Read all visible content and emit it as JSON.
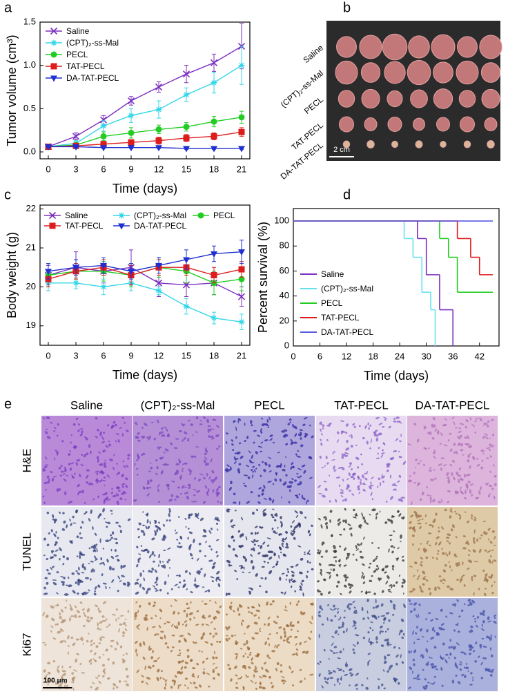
{
  "panel_labels": [
    "a",
    "b",
    "c",
    "d",
    "e"
  ],
  "chart_data": [
    {
      "type": "line",
      "xlabel": "Time (days)",
      "ylabel": "Tumor volume (cm³)",
      "x": [
        0,
        3,
        6,
        9,
        12,
        15,
        18,
        21
      ],
      "xlim": [
        -0.9,
        21.9
      ],
      "xticks": [
        0,
        3,
        6,
        9,
        12,
        15,
        18,
        21
      ],
      "ylim": [
        -0.08,
        1.5
      ],
      "yticks": [
        {
          "value": 0,
          "label": "0.0"
        },
        0.5,
        {
          "value": 1,
          "label": "1.0"
        },
        1.5
      ],
      "legend": "upper left",
      "legend_columns": 1,
      "series": [
        {
          "name": "Saline",
          "color": "#7b2fbe",
          "marker": "x",
          "values": [
            0.06,
            0.18,
            0.37,
            0.59,
            0.75,
            0.9,
            1.03,
            1.22
          ],
          "errors": [
            0.02,
            0.04,
            0.05,
            0.05,
            0.06,
            0.1,
            0.1,
            0.26
          ]
        },
        {
          "name": "(CPT)₂-ss-Mal",
          "color": "#33d6e8",
          "marker": "asterisk",
          "values": [
            0.06,
            0.1,
            0.3,
            0.42,
            0.49,
            0.66,
            0.8,
            1.0
          ],
          "errors": [
            0.02,
            0.03,
            0.06,
            0.08,
            0.1,
            0.08,
            0.12,
            0.22
          ]
        },
        {
          "name": "PECL",
          "color": "#22cc22",
          "marker": "circle",
          "values": [
            0.06,
            0.08,
            0.18,
            0.22,
            0.26,
            0.29,
            0.35,
            0.4
          ],
          "errors": [
            0.02,
            0.02,
            0.05,
            0.06,
            0.05,
            0.05,
            0.06,
            0.07
          ]
        },
        {
          "name": "TAT-PECL",
          "color": "#dd1c1c",
          "marker": "square",
          "values": [
            0.06,
            0.07,
            0.09,
            0.11,
            0.13,
            0.16,
            0.18,
            0.23
          ],
          "errors": [
            0.02,
            0.02,
            0.03,
            0.03,
            0.04,
            0.04,
            0.04,
            0.05
          ]
        },
        {
          "name": "DA-TAT-PECL",
          "color": "#1f2fd0",
          "marker": "triangle-down",
          "values": [
            0.06,
            0.06,
            0.05,
            0.05,
            0.05,
            0.04,
            0.04,
            0.04
          ],
          "errors": [
            0.01,
            0.01,
            0.01,
            0.01,
            0.01,
            0.01,
            0.01,
            0.01
          ]
        }
      ]
    },
    {
      "type": "line",
      "xlabel": "Time (days)",
      "ylabel": "Body weight (g)",
      "x": [
        0,
        3,
        6,
        9,
        12,
        15,
        18,
        21
      ],
      "xlim": [
        -0.9,
        21.9
      ],
      "xticks": [
        0,
        3,
        6,
        9,
        12,
        15,
        18,
        21
      ],
      "ylim": [
        18.5,
        22.1
      ],
      "yticks": [
        19,
        20,
        21,
        22
      ],
      "legend": "upper left",
      "legend_columns": 3,
      "series": [
        {
          "name": "Saline",
          "color": "#7b2fbe",
          "marker": "x",
          "values": [
            20.3,
            20.5,
            20.4,
            20.5,
            20.1,
            20.05,
            20.1,
            19.75
          ],
          "errors": [
            0.25,
            0.4,
            0.3,
            0.45,
            0.35,
            0.3,
            0.3,
            0.25
          ]
        },
        {
          "name": "(CPT)₂-ss-Mal",
          "color": "#33d6e8",
          "marker": "asterisk",
          "values": [
            20.1,
            20.1,
            20.0,
            20.1,
            19.9,
            19.5,
            19.2,
            19.1
          ],
          "errors": [
            0.2,
            0.15,
            0.2,
            0.2,
            0.1,
            0.2,
            0.15,
            0.2
          ]
        },
        {
          "name": "PECL",
          "color": "#22cc22",
          "marker": "circle",
          "values": [
            20.3,
            20.4,
            20.4,
            20.3,
            20.5,
            20.4,
            20.1,
            20.2
          ],
          "errors": [
            0.3,
            0.2,
            0.25,
            0.3,
            0.25,
            0.3,
            0.3,
            0.3
          ]
        },
        {
          "name": "TAT-PECL",
          "color": "#dd1c1c",
          "marker": "square",
          "values": [
            20.2,
            20.4,
            20.5,
            20.3,
            20.5,
            20.5,
            20.3,
            20.45
          ],
          "errors": [
            0.2,
            0.2,
            0.2,
            0.25,
            0.2,
            0.2,
            0.2,
            0.2
          ]
        },
        {
          "name": "DA-TAT-PECL",
          "color": "#1f2fd0",
          "marker": "triangle-down",
          "values": [
            20.4,
            20.5,
            20.55,
            20.4,
            20.55,
            20.7,
            20.85,
            20.9
          ],
          "errors": [
            0.2,
            0.2,
            0.2,
            0.2,
            0.2,
            0.25,
            0.2,
            0.3
          ]
        }
      ]
    },
    {
      "type": "step",
      "xlabel": "Time (days)",
      "ylabel": "Percent survival (%)",
      "xlim": [
        0,
        46.4
      ],
      "xticks": [
        0,
        6,
        12,
        18,
        24,
        30,
        36,
        42
      ],
      "ylim": [
        0,
        110
      ],
      "yticks": [
        0,
        20,
        40,
        60,
        80,
        100
      ],
      "legend": "lower left",
      "legend_columns": 1,
      "series": [
        {
          "name": "Saline",
          "color": "#7b2fbe",
          "x": [
            0,
            28,
            30,
            33,
            36
          ],
          "values": [
            100,
            86,
            57,
            29,
            0
          ]
        },
        {
          "name": "(CPT)₂-ss-Mal",
          "color": "#66e0ee",
          "x": [
            0,
            25,
            27,
            29,
            31,
            32
          ],
          "values": [
            100,
            86,
            71,
            43,
            29,
            0
          ]
        },
        {
          "name": "PECL",
          "color": "#22cc22",
          "x": [
            0,
            33,
            35,
            37,
            45
          ],
          "values": [
            100,
            86,
            71,
            43,
            43
          ]
        },
        {
          "name": "TAT-PECL",
          "color": "#dd1c1c",
          "x": [
            0,
            37,
            40,
            42,
            45
          ],
          "values": [
            100,
            86,
            71,
            57,
            57
          ]
        },
        {
          "name": "DA-TAT-PECL",
          "color": "#5a5ae0",
          "x": [
            0,
            45
          ],
          "values": [
            100,
            100
          ]
        }
      ]
    }
  ],
  "tumor_photo": {
    "rows": [
      "Saline",
      "(CPT)₂-ss-Mal",
      "PECL",
      "TAT-PECL",
      "DA-TAT-PECL"
    ],
    "scale_bar": "2 cm"
  },
  "histology": {
    "columns": [
      "Saline",
      "(CPT)₂-ss-Mal",
      "PECL",
      "TAT-PECL",
      "DA-TAT-PECL"
    ],
    "rows": [
      "H&E",
      "TUNEL",
      "Ki67"
    ],
    "scale_bar": "100 μm"
  }
}
